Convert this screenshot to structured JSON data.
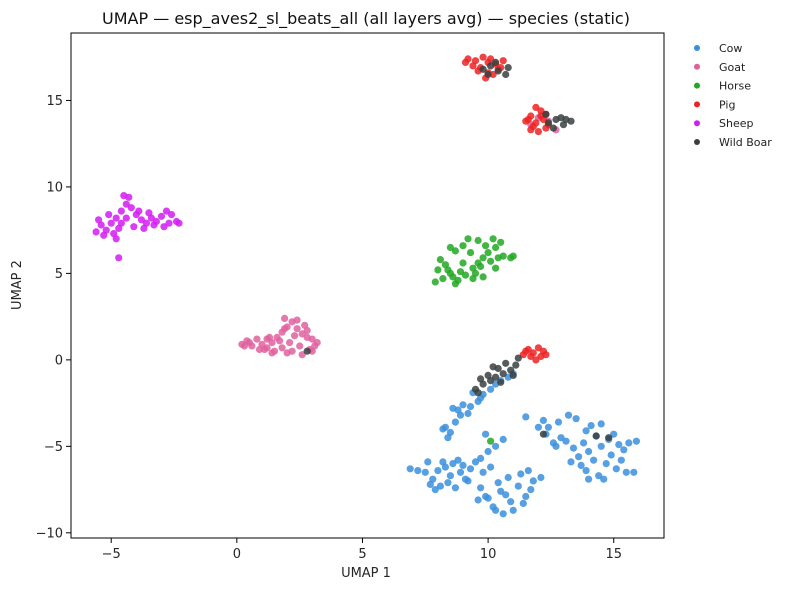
{
  "chart_data": {
    "type": "scatter",
    "title": "UMAP — esp_aves2_sl_beats_all (all layers avg) — species (static)",
    "xlabel": "UMAP 1",
    "ylabel": "UMAP 2",
    "xlim": [
      -6.6,
      17.0
    ],
    "ylim": [
      -10.3,
      18.9
    ],
    "xticks": [
      -5,
      0,
      5,
      10,
      15
    ],
    "xtick_labels": [
      "−5",
      "0",
      "5",
      "10",
      "15"
    ],
    "yticks": [
      -10,
      -5,
      0,
      5,
      10,
      15
    ],
    "ytick_labels": [
      "−10",
      "−5",
      "0",
      "5",
      "10",
      "15"
    ],
    "grid": false,
    "legend_position": "outside-top-right",
    "series": [
      {
        "name": "Cow",
        "color": "#3a8fdd",
        "points": [
          [
            13.2,
            -3.2
          ],
          [
            12.8,
            -3.6
          ],
          [
            13.5,
            -3.4
          ],
          [
            12.4,
            -3.9
          ],
          [
            13.9,
            -4.1
          ],
          [
            14.3,
            -4.4
          ],
          [
            14.8,
            -4.6
          ],
          [
            15.2,
            -4.9
          ],
          [
            15.6,
            -4.8
          ],
          [
            15.9,
            -4.7
          ],
          [
            14.5,
            -5.0
          ],
          [
            14.0,
            -5.3
          ],
          [
            13.6,
            -5.6
          ],
          [
            14.2,
            -5.8
          ],
          [
            14.7,
            -6.0
          ],
          [
            15.1,
            -6.3
          ],
          [
            15.5,
            -6.5
          ],
          [
            15.8,
            -6.5
          ],
          [
            14.4,
            -6.7
          ],
          [
            13.9,
            -6.4
          ],
          [
            13.4,
            -5.1
          ],
          [
            12.9,
            -4.5
          ],
          [
            12.3,
            -4.3
          ],
          [
            12.7,
            -5.0
          ],
          [
            13.8,
            -4.8
          ],
          [
            14.9,
            -5.5
          ],
          [
            15.3,
            -5.8
          ],
          [
            14.6,
            -6.9
          ],
          [
            13.7,
            -6.1
          ],
          [
            12.0,
            -3.9
          ],
          [
            11.5,
            -3.3
          ],
          [
            12.2,
            -3.5
          ],
          [
            13.1,
            -4.7
          ],
          [
            14.1,
            -3.8
          ],
          [
            15.4,
            -5.2
          ],
          [
            15.0,
            -4.3
          ],
          [
            14.5,
            -3.7
          ],
          [
            13.3,
            -5.9
          ],
          [
            12.6,
            -4.8
          ],
          [
            14.0,
            -6.9
          ],
          [
            10.8,
            -6.8
          ],
          [
            11.2,
            -7.3
          ],
          [
            10.5,
            -7.6
          ],
          [
            11.5,
            -7.9
          ],
          [
            10.9,
            -8.2
          ],
          [
            10.2,
            -8.5
          ],
          [
            10.6,
            -8.9
          ],
          [
            11.0,
            -8.7
          ],
          [
            9.9,
            -7.9
          ],
          [
            10.4,
            -7.1
          ],
          [
            9.8,
            -6.5
          ],
          [
            10.1,
            -6.2
          ],
          [
            9.7,
            -5.7
          ],
          [
            10.0,
            -5.3
          ],
          [
            10.3,
            -5.0
          ],
          [
            10.6,
            -4.6
          ],
          [
            9.9,
            -4.3
          ],
          [
            9.5,
            -5.9
          ],
          [
            9.3,
            -6.3
          ],
          [
            9.7,
            -7.4
          ],
          [
            11.8,
            -7.0
          ],
          [
            12.1,
            -6.8
          ],
          [
            11.6,
            -6.4
          ],
          [
            11.3,
            -6.6
          ],
          [
            10.7,
            -7.8
          ],
          [
            10.0,
            -8.0
          ],
          [
            11.4,
            -8.3
          ],
          [
            10.3,
            -8.7
          ],
          [
            9.6,
            -8.1
          ],
          [
            11.7,
            -7.5
          ],
          [
            8.2,
            -5.9
          ],
          [
            8.0,
            -6.4
          ],
          [
            8.5,
            -6.7
          ],
          [
            8.9,
            -6.5
          ],
          [
            9.1,
            -6.9
          ],
          [
            8.4,
            -7.1
          ],
          [
            8.7,
            -7.4
          ],
          [
            7.8,
            -6.9
          ],
          [
            7.5,
            -6.5
          ],
          [
            8.3,
            -6.2
          ],
          [
            6.9,
            -6.3
          ],
          [
            7.2,
            -6.4
          ],
          [
            7.7,
            -7.2
          ],
          [
            9.2,
            -7.0
          ],
          [
            8.8,
            -5.8
          ],
          [
            7.9,
            -7.5
          ],
          [
            8.6,
            -6.0
          ],
          [
            9.0,
            -6.1
          ],
          [
            7.6,
            -5.9
          ],
          [
            8.1,
            -7.3
          ],
          [
            8.3,
            -3.9
          ],
          [
            8.5,
            -4.2
          ],
          [
            8.7,
            -3.6
          ],
          [
            8.9,
            -3.2
          ],
          [
            9.3,
            -2.7
          ],
          [
            9.6,
            -2.4
          ],
          [
            9.8,
            -2.0
          ],
          [
            10.1,
            -1.7
          ],
          [
            10.3,
            -1.4
          ],
          [
            8.6,
            -2.8
          ],
          [
            9.0,
            -2.6
          ],
          [
            9.2,
            -3.1
          ],
          [
            8.4,
            -4.5
          ],
          [
            8.8,
            -2.9
          ],
          [
            10.5,
            -1.2
          ],
          [
            9.4,
            -1.9
          ],
          [
            10.8,
            -1.0
          ],
          [
            9.7,
            -2.2
          ],
          [
            11.0,
            -0.8
          ],
          [
            8.2,
            -4.0
          ]
        ]
      },
      {
        "name": "Goat",
        "color": "#e0609e",
        "points": [
          [
            0.2,
            0.9
          ],
          [
            0.4,
            1.1
          ],
          [
            0.6,
            0.8
          ],
          [
            0.8,
            1.2
          ],
          [
            1.0,
            0.9
          ],
          [
            1.2,
            0.7
          ],
          [
            1.4,
            1.0
          ],
          [
            1.6,
            1.3
          ],
          [
            1.8,
            1.6
          ],
          [
            2.0,
            1.9
          ],
          [
            2.2,
            2.2
          ],
          [
            1.9,
            2.4
          ],
          [
            2.4,
            1.8
          ],
          [
            2.6,
            1.5
          ],
          [
            2.8,
            1.7
          ],
          [
            3.0,
            1.2
          ],
          [
            3.2,
            1.0
          ],
          [
            2.9,
            0.6
          ],
          [
            2.5,
            0.8
          ],
          [
            2.2,
            0.5
          ],
          [
            1.8,
            0.7
          ],
          [
            1.5,
            0.5
          ],
          [
            1.1,
            0.6
          ],
          [
            0.5,
            1.0
          ],
          [
            0.9,
            0.6
          ],
          [
            1.3,
            1.3
          ],
          [
            2.1,
            1.0
          ],
          [
            2.7,
            2.0
          ],
          [
            3.1,
            0.8
          ],
          [
            2.3,
            1.4
          ],
          [
            1.7,
            1.1
          ],
          [
            0.3,
            0.8
          ],
          [
            2.0,
            0.4
          ],
          [
            2.6,
            0.3
          ],
          [
            3.0,
            0.5
          ],
          [
            1.4,
            0.4
          ],
          [
            2.8,
            1.3
          ],
          [
            1.2,
            1.2
          ],
          [
            2.4,
            2.3
          ],
          [
            1.9,
            1.8
          ],
          [
            12.7,
            13.3
          ],
          [
            12.0,
            14.0
          ],
          [
            12.4,
            13.8
          ],
          [
            11.7,
            13.6
          ]
        ]
      },
      {
        "name": "Horse",
        "color": "#22a822",
        "points": [
          [
            7.9,
            4.5
          ],
          [
            8.2,
            4.7
          ],
          [
            8.5,
            5.0
          ],
          [
            8.0,
            5.2
          ],
          [
            8.3,
            5.5
          ],
          [
            8.6,
            4.8
          ],
          [
            8.9,
            5.1
          ],
          [
            9.1,
            4.9
          ],
          [
            9.4,
            5.3
          ],
          [
            9.6,
            5.6
          ],
          [
            9.8,
            5.9
          ],
          [
            10.0,
            6.2
          ],
          [
            10.3,
            6.5
          ],
          [
            10.5,
            6.8
          ],
          [
            10.2,
            7.0
          ],
          [
            9.9,
            6.6
          ],
          [
            9.2,
            7.0
          ],
          [
            9.0,
            6.6
          ],
          [
            8.7,
            6.3
          ],
          [
            8.5,
            6.5
          ],
          [
            9.3,
            6.2
          ],
          [
            9.5,
            5.0
          ],
          [
            9.7,
            5.4
          ],
          [
            10.1,
            5.7
          ],
          [
            10.4,
            5.9
          ],
          [
            10.6,
            6.0
          ],
          [
            9.4,
            4.7
          ],
          [
            8.8,
            4.6
          ],
          [
            8.1,
            5.8
          ],
          [
            10.9,
            5.9
          ],
          [
            11.0,
            6.0
          ],
          [
            9.6,
            6.9
          ],
          [
            8.4,
            5.2
          ],
          [
            9.0,
            5.6
          ],
          [
            10.3,
            5.3
          ],
          [
            9.8,
            4.8
          ],
          [
            8.7,
            4.4
          ],
          [
            10.1,
            -4.7
          ]
        ]
      },
      {
        "name": "Pig",
        "color": "#ee2222",
        "points": [
          [
            9.2,
            17.4
          ],
          [
            9.5,
            17.3
          ],
          [
            9.8,
            17.5
          ],
          [
            10.0,
            17.2
          ],
          [
            10.3,
            17.1
          ],
          [
            10.6,
            17.3
          ],
          [
            9.7,
            16.9
          ],
          [
            10.0,
            16.6
          ],
          [
            9.9,
            16.3
          ],
          [
            10.2,
            16.5
          ],
          [
            10.4,
            16.8
          ],
          [
            9.4,
            17.0
          ],
          [
            9.1,
            17.2
          ],
          [
            10.1,
            17.4
          ],
          [
            10.5,
            16.9
          ],
          [
            9.6,
            16.7
          ],
          [
            11.9,
            14.6
          ],
          [
            12.1,
            14.4
          ],
          [
            12.3,
            14.2
          ],
          [
            11.7,
            14.1
          ],
          [
            11.5,
            13.8
          ],
          [
            11.8,
            13.5
          ],
          [
            12.0,
            13.2
          ],
          [
            12.3,
            13.4
          ],
          [
            11.6,
            13.9
          ],
          [
            12.2,
            13.9
          ],
          [
            11.9,
            13.7
          ],
          [
            12.4,
            13.6
          ],
          [
            11.7,
            13.3
          ],
          [
            12.1,
            14.1
          ],
          [
            11.4,
            0.3
          ],
          [
            11.6,
            0.6
          ],
          [
            11.8,
            0.4
          ],
          [
            12.0,
            0.7
          ],
          [
            12.2,
            0.5
          ],
          [
            11.7,
            0.2
          ],
          [
            11.9,
            0.0
          ],
          [
            12.1,
            0.2
          ],
          [
            11.5,
            0.5
          ],
          [
            12.3,
            0.3
          ]
        ]
      },
      {
        "name": "Sheep",
        "color": "#d41cf2",
        "points": [
          [
            -5.6,
            7.4
          ],
          [
            -5.4,
            7.8
          ],
          [
            -5.2,
            7.5
          ],
          [
            -5.0,
            7.9
          ],
          [
            -4.8,
            8.2
          ],
          [
            -4.6,
            8.6
          ],
          [
            -4.4,
            9.0
          ],
          [
            -4.3,
            9.4
          ],
          [
            -4.5,
            9.5
          ],
          [
            -4.2,
            8.8
          ],
          [
            -4.0,
            8.4
          ],
          [
            -3.8,
            8.1
          ],
          [
            -3.6,
            7.9
          ],
          [
            -3.4,
            8.2
          ],
          [
            -3.2,
            8.0
          ],
          [
            -3.0,
            8.3
          ],
          [
            -2.8,
            8.6
          ],
          [
            -2.6,
            8.4
          ],
          [
            -2.4,
            8.0
          ],
          [
            -2.3,
            7.9
          ],
          [
            -4.9,
            7.3
          ],
          [
            -4.7,
            7.6
          ],
          [
            -5.1,
            8.4
          ],
          [
            -4.1,
            7.7
          ],
          [
            -3.7,
            7.6
          ],
          [
            -3.3,
            7.8
          ],
          [
            -2.9,
            7.7
          ],
          [
            -5.3,
            7.2
          ],
          [
            -4.4,
            8.2
          ],
          [
            -3.9,
            8.6
          ],
          [
            -4.8,
            7.0
          ],
          [
            -5.5,
            8.1
          ],
          [
            -3.5,
            8.5
          ],
          [
            -2.7,
            7.9
          ],
          [
            -4.6,
            7.9
          ],
          [
            -4.7,
            5.9
          ]
        ]
      },
      {
        "name": "Wild Boar",
        "color": "#3a4040",
        "points": [
          [
            9.8,
            16.8
          ],
          [
            10.1,
            17.0
          ],
          [
            10.4,
            16.7
          ],
          [
            10.7,
            16.5
          ],
          [
            10.0,
            16.5
          ],
          [
            10.8,
            16.9
          ],
          [
            10.3,
            17.2
          ],
          [
            12.4,
            13.7
          ],
          [
            12.7,
            13.9
          ],
          [
            13.0,
            13.6
          ],
          [
            13.3,
            13.8
          ],
          [
            12.6,
            13.4
          ],
          [
            12.9,
            14.0
          ],
          [
            13.1,
            13.9
          ],
          [
            12.3,
            14.2
          ],
          [
            9.5,
            -1.7
          ],
          [
            9.8,
            -1.4
          ],
          [
            10.1,
            -1.2
          ],
          [
            10.3,
            -1.0
          ],
          [
            10.6,
            -0.8
          ],
          [
            10.9,
            -0.6
          ],
          [
            11.1,
            -0.3
          ],
          [
            10.4,
            -0.5
          ],
          [
            10.0,
            -0.9
          ],
          [
            10.7,
            -0.2
          ],
          [
            11.2,
            0.1
          ],
          [
            9.7,
            -1.1
          ],
          [
            10.2,
            -0.4
          ],
          [
            11.0,
            -0.9
          ],
          [
            9.6,
            -1.9
          ],
          [
            12.2,
            -4.3
          ],
          [
            14.3,
            -4.4
          ],
          [
            14.8,
            -4.5
          ],
          [
            2.8,
            0.5
          ],
          [
            10.5,
            -1.3
          ]
        ]
      }
    ]
  }
}
